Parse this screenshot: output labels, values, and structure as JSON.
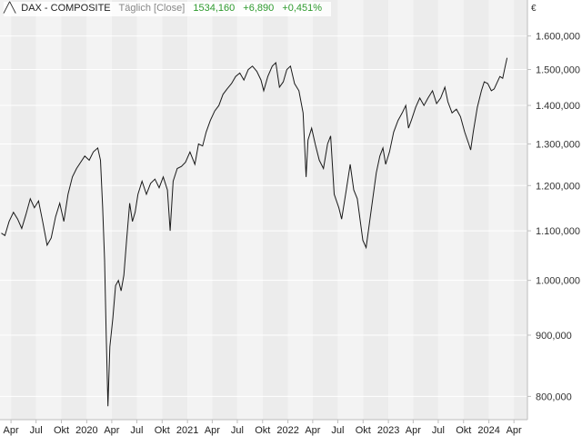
{
  "header": {
    "icon": "line-chart-icon",
    "name": "DAX - COMPOSITE",
    "mode": "Täglich [Close]",
    "last": "1534,160",
    "change": "+6,890",
    "change_pct": "+0,451%",
    "positive_color": "#2e9a2e"
  },
  "chart_data": {
    "type": "line",
    "unit": "€",
    "scale": "log",
    "ylim": [
      765,
      1650
    ],
    "xlim": [
      "2019-02-20",
      "2024-05-20"
    ],
    "grid": true,
    "yticks": [
      {
        "value": 1600,
        "label": "1.600,000"
      },
      {
        "value": 1500,
        "label": "1.500,000"
      },
      {
        "value": 1400,
        "label": "1.400,000"
      },
      {
        "value": 1300,
        "label": "1.300,000"
      },
      {
        "value": 1200,
        "label": "1.200,000"
      },
      {
        "value": 1100,
        "label": "1.100,000"
      },
      {
        "value": 1000,
        "label": "1.000,000"
      },
      {
        "value": 900,
        "label": "900,000"
      },
      {
        "value": 800,
        "label": "800,000"
      }
    ],
    "xticks": [
      {
        "date": "2019-04-01",
        "label": "Apr"
      },
      {
        "date": "2019-07-01",
        "label": "Jul"
      },
      {
        "date": "2019-10-01",
        "label": "Okt"
      },
      {
        "date": "2020-01-01",
        "label": "2020"
      },
      {
        "date": "2020-04-01",
        "label": "Apr"
      },
      {
        "date": "2020-07-01",
        "label": "Jul"
      },
      {
        "date": "2020-10-01",
        "label": "Okt"
      },
      {
        "date": "2021-01-01",
        "label": "2021"
      },
      {
        "date": "2021-04-01",
        "label": "Apr"
      },
      {
        "date": "2021-07-01",
        "label": "Jul"
      },
      {
        "date": "2021-10-01",
        "label": "Okt"
      },
      {
        "date": "2022-01-01",
        "label": "2022"
      },
      {
        "date": "2022-04-01",
        "label": "Apr"
      },
      {
        "date": "2022-07-01",
        "label": "Jul"
      },
      {
        "date": "2022-10-01",
        "label": "Okt"
      },
      {
        "date": "2023-01-01",
        "label": "2023"
      },
      {
        "date": "2023-04-01",
        "label": "Apr"
      },
      {
        "date": "2023-07-01",
        "label": "Jul"
      },
      {
        "date": "2023-10-01",
        "label": "Okt"
      },
      {
        "date": "2024-01-01",
        "label": "2024"
      },
      {
        "date": "2024-04-01",
        "label": "Apr"
      }
    ],
    "series": [
      {
        "values": [
          [
            "2019-02-25",
            1095
          ],
          [
            "2019-03-10",
            1090
          ],
          [
            "2019-03-25",
            1120
          ],
          [
            "2019-04-10",
            1140
          ],
          [
            "2019-04-25",
            1125
          ],
          [
            "2019-05-10",
            1105
          ],
          [
            "2019-05-25",
            1135
          ],
          [
            "2019-06-10",
            1170
          ],
          [
            "2019-06-25",
            1150
          ],
          [
            "2019-07-10",
            1165
          ],
          [
            "2019-07-25",
            1120
          ],
          [
            "2019-08-10",
            1070
          ],
          [
            "2019-08-25",
            1085
          ],
          [
            "2019-09-10",
            1130
          ],
          [
            "2019-09-25",
            1160
          ],
          [
            "2019-10-10",
            1120
          ],
          [
            "2019-10-25",
            1180
          ],
          [
            "2019-11-10",
            1220
          ],
          [
            "2019-11-25",
            1240
          ],
          [
            "2019-12-10",
            1255
          ],
          [
            "2019-12-25",
            1270
          ],
          [
            "2020-01-10",
            1260
          ],
          [
            "2020-01-25",
            1280
          ],
          [
            "2020-02-10",
            1290
          ],
          [
            "2020-02-20",
            1260
          ],
          [
            "2020-02-28",
            1150
          ],
          [
            "2020-03-06",
            1040
          ],
          [
            "2020-03-12",
            900
          ],
          [
            "2020-03-18",
            785
          ],
          [
            "2020-03-25",
            880
          ],
          [
            "2020-04-05",
            930
          ],
          [
            "2020-04-15",
            990
          ],
          [
            "2020-04-25",
            1000
          ],
          [
            "2020-05-05",
            980
          ],
          [
            "2020-05-15",
            1010
          ],
          [
            "2020-05-25",
            1080
          ],
          [
            "2020-06-05",
            1160
          ],
          [
            "2020-06-15",
            1120
          ],
          [
            "2020-06-25",
            1140
          ],
          [
            "2020-07-05",
            1180
          ],
          [
            "2020-07-20",
            1210
          ],
          [
            "2020-08-05",
            1180
          ],
          [
            "2020-08-20",
            1205
          ],
          [
            "2020-09-05",
            1215
          ],
          [
            "2020-09-20",
            1195
          ],
          [
            "2020-10-05",
            1220
          ],
          [
            "2020-10-20",
            1190
          ],
          [
            "2020-10-30",
            1100
          ],
          [
            "2020-11-10",
            1210
          ],
          [
            "2020-11-25",
            1240
          ],
          [
            "2020-12-10",
            1245
          ],
          [
            "2020-12-25",
            1255
          ],
          [
            "2021-01-10",
            1280
          ],
          [
            "2021-01-28",
            1250
          ],
          [
            "2021-02-10",
            1300
          ],
          [
            "2021-02-25",
            1295
          ],
          [
            "2021-03-10",
            1330
          ],
          [
            "2021-03-25",
            1360
          ],
          [
            "2021-04-10",
            1385
          ],
          [
            "2021-04-25",
            1400
          ],
          [
            "2021-05-10",
            1430
          ],
          [
            "2021-05-25",
            1445
          ],
          [
            "2021-06-10",
            1460
          ],
          [
            "2021-06-25",
            1480
          ],
          [
            "2021-07-10",
            1490
          ],
          [
            "2021-07-25",
            1470
          ],
          [
            "2021-08-10",
            1500
          ],
          [
            "2021-08-25",
            1510
          ],
          [
            "2021-09-10",
            1495
          ],
          [
            "2021-09-25",
            1470
          ],
          [
            "2021-10-05",
            1440
          ],
          [
            "2021-10-20",
            1480
          ],
          [
            "2021-11-05",
            1510
          ],
          [
            "2021-11-18",
            1520
          ],
          [
            "2021-12-01",
            1450
          ],
          [
            "2021-12-15",
            1465
          ],
          [
            "2021-12-28",
            1500
          ],
          [
            "2022-01-10",
            1510
          ],
          [
            "2022-01-25",
            1460
          ],
          [
            "2022-02-10",
            1440
          ],
          [
            "2022-02-25",
            1380
          ],
          [
            "2022-03-08",
            1220
          ],
          [
            "2022-03-15",
            1310
          ],
          [
            "2022-03-28",
            1340
          ],
          [
            "2022-04-10",
            1300
          ],
          [
            "2022-04-25",
            1260
          ],
          [
            "2022-05-10",
            1240
          ],
          [
            "2022-05-25",
            1300
          ],
          [
            "2022-06-05",
            1320
          ],
          [
            "2022-06-18",
            1180
          ],
          [
            "2022-07-05",
            1150
          ],
          [
            "2022-07-15",
            1125
          ],
          [
            "2022-08-01",
            1190
          ],
          [
            "2022-08-15",
            1250
          ],
          [
            "2022-08-28",
            1190
          ],
          [
            "2022-09-10",
            1170
          ],
          [
            "2022-09-30",
            1080
          ],
          [
            "2022-10-12",
            1065
          ],
          [
            "2022-10-25",
            1120
          ],
          [
            "2022-11-05",
            1170
          ],
          [
            "2022-11-18",
            1230
          ],
          [
            "2022-12-01",
            1270
          ],
          [
            "2022-12-12",
            1290
          ],
          [
            "2022-12-22",
            1250
          ],
          [
            "2023-01-05",
            1280
          ],
          [
            "2023-01-20",
            1330
          ],
          [
            "2023-02-05",
            1360
          ],
          [
            "2023-02-20",
            1380
          ],
          [
            "2023-03-05",
            1400
          ],
          [
            "2023-03-15",
            1340
          ],
          [
            "2023-03-25",
            1360
          ],
          [
            "2023-04-10",
            1395
          ],
          [
            "2023-04-25",
            1420
          ],
          [
            "2023-05-10",
            1400
          ],
          [
            "2023-05-25",
            1420
          ],
          [
            "2023-06-10",
            1440
          ],
          [
            "2023-06-25",
            1405
          ],
          [
            "2023-07-10",
            1420
          ],
          [
            "2023-07-25",
            1450
          ],
          [
            "2023-08-05",
            1410
          ],
          [
            "2023-08-20",
            1380
          ],
          [
            "2023-09-05",
            1390
          ],
          [
            "2023-09-20",
            1370
          ],
          [
            "2023-10-05",
            1330
          ],
          [
            "2023-10-20",
            1300
          ],
          [
            "2023-10-27",
            1285
          ],
          [
            "2023-11-05",
            1330
          ],
          [
            "2023-11-20",
            1395
          ],
          [
            "2023-12-05",
            1440
          ],
          [
            "2023-12-15",
            1465
          ],
          [
            "2023-12-28",
            1460
          ],
          [
            "2024-01-10",
            1440
          ],
          [
            "2024-01-20",
            1445
          ],
          [
            "2024-02-01",
            1465
          ],
          [
            "2024-02-10",
            1480
          ],
          [
            "2024-02-20",
            1475
          ],
          [
            "2024-02-28",
            1505
          ],
          [
            "2024-03-07",
            1534
          ]
        ]
      }
    ]
  }
}
